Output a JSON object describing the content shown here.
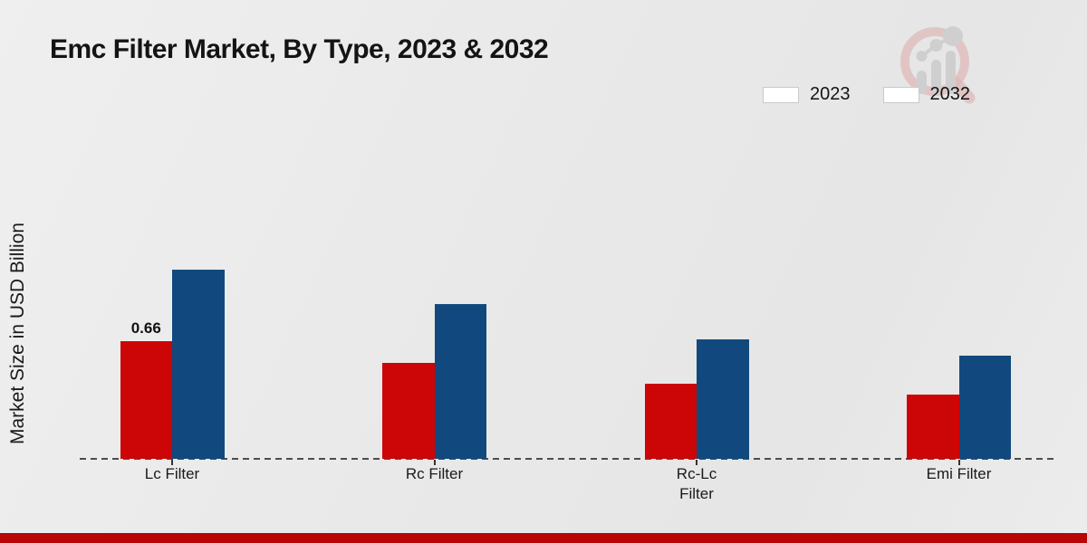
{
  "page": {
    "title": "Emc Filter Market, By Type, 2023 & 2032"
  },
  "colors": {
    "series_2023": "#cc0506",
    "series_2032": "#11497e",
    "footer_bar": "#b90504",
    "axis_dash": "#4d4d4d",
    "watermark_ring": "#dfb9b9",
    "watermark_bars": "#cfcfcf"
  },
  "legend": {
    "items": [
      {
        "label": "2023"
      },
      {
        "label": "2032"
      }
    ]
  },
  "chart_data": {
    "type": "bar",
    "title": "Emc Filter Market, By Type, 2023 & 2032",
    "xlabel": "",
    "ylabel": "Market Size in USD Billion",
    "categories": [
      "Lc Filter",
      "Rc Filter",
      "Rc-Lc Filter",
      "Emi Filter"
    ],
    "category_display_lines": [
      [
        "Lc Filter"
      ],
      [
        "Rc Filter"
      ],
      [
        "Rc-Lc",
        "Filter"
      ],
      [
        "Emi Filter"
      ]
    ],
    "series": [
      {
        "name": "2023",
        "color": "#cc0506",
        "values": [
          0.66,
          0.54,
          0.42,
          0.36
        ]
      },
      {
        "name": "2032",
        "color": "#11497e",
        "values": [
          1.06,
          0.87,
          0.67,
          0.58
        ]
      }
    ],
    "data_labels": [
      {
        "series_index": 0,
        "category_index": 0,
        "text": "0.66"
      }
    ],
    "ylim": [
      0,
      1.15
    ],
    "grid": false,
    "legend_position": "top-right",
    "baseline_style": "dashed",
    "yaxis_ticks_visible": false
  },
  "watermark": {
    "name": "magnifier-bar-chart-logo"
  }
}
